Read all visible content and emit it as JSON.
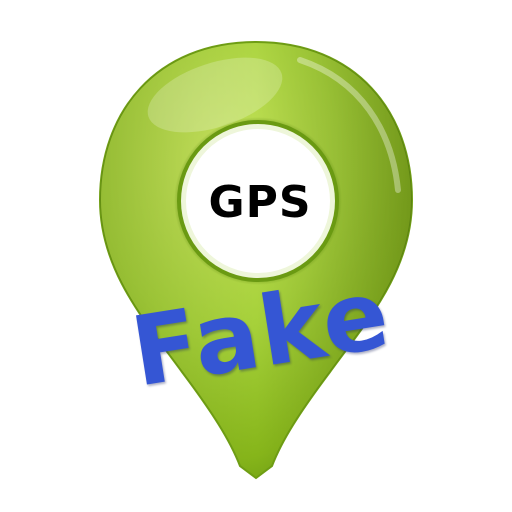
{
  "icon": {
    "name": "map-pin-icon",
    "gps_text": "GPS",
    "fake_text": "Fake"
  },
  "colors": {
    "pin_light": "#b4d94a",
    "pin_mid": "#8fbc1f",
    "pin_dark": "#5e8f0f",
    "ring": "#6f9e14",
    "fake_text": "#3556d4",
    "gps_text": "#000000",
    "background": "#ffffff"
  }
}
